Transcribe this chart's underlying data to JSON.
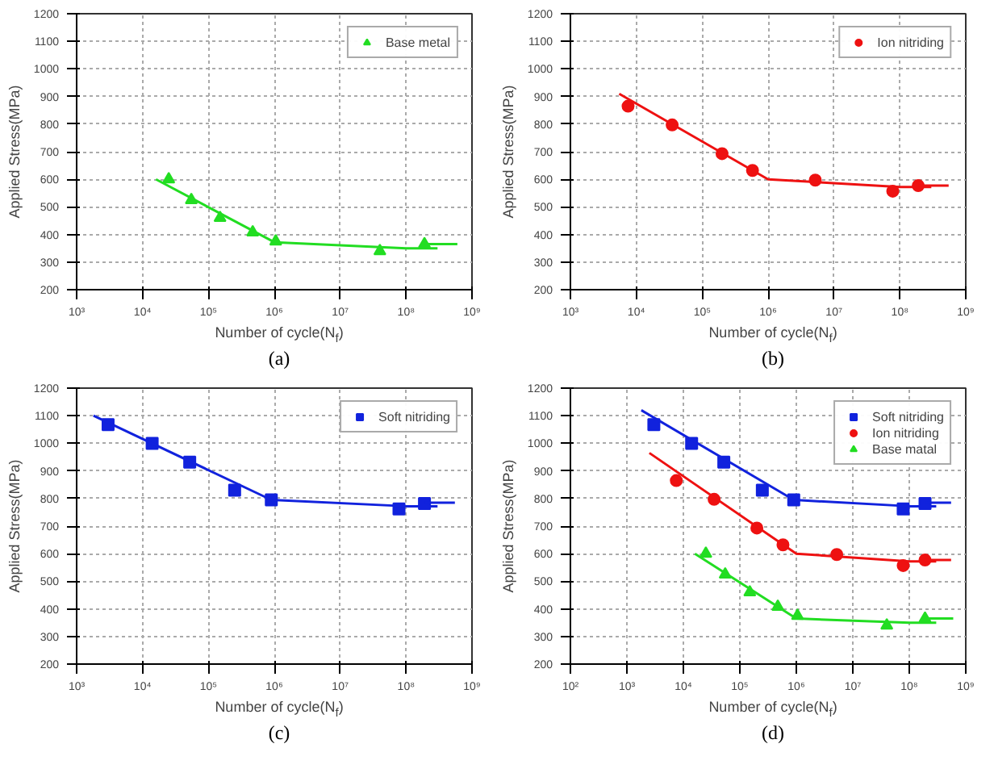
{
  "chart_data": [
    {
      "type": "scatter",
      "xlabel": "Number of cycle(N$_{f}$)",
      "ylabel": "Applied Stress(MPa)",
      "annotations": [
        "(a)"
      ],
      "log": "x",
      "grid": true,
      "legend": "top right",
      "xlim": [
        1000,
        1000000000
      ],
      "xticks": [
        {
          "value": 1000,
          "label": "10³"
        },
        {
          "value": 10000,
          "label": "10⁴"
        },
        {
          "value": 100000,
          "label": "10⁵"
        },
        {
          "value": 1000000,
          "label": "10⁶"
        },
        {
          "value": 10000000,
          "label": "10⁷"
        },
        {
          "value": 100000000,
          "label": "10⁸"
        },
        {
          "value": 1000000000,
          "label": "10⁹"
        }
      ],
      "ylim": [
        200,
        1200
      ],
      "yticks": [
        200,
        300,
        400,
        500,
        600,
        700,
        800,
        900,
        1000,
        1100,
        1200
      ],
      "series": [
        {
          "name": "Base metal",
          "color": "#22dd22",
          "marker": "triangle",
          "x": [
            25000,
            55000,
            150000,
            470000,
            1050000,
            40000000,
            190000000
          ],
          "values": [
            600,
            525,
            460,
            408,
            375,
            340,
            365
          ]
        },
        {
          "type": "line",
          "color": "#22dd22",
          "x": [
            16000,
            1000000,
            100000000,
            300000000
          ],
          "values": [
            600,
            372,
            350,
            350
          ]
        },
        {
          "type": "line",
          "color": "#22dd22",
          "x": [
            190000000,
            600000000
          ],
          "values": [
            365,
            365
          ]
        }
      ]
    },
    {
      "type": "scatter",
      "xlabel": "Number of cycle(N$_{f}$)",
      "ylabel": "Applied Stress(MPa)",
      "annotations": [
        "(b)"
      ],
      "log": "x",
      "grid": true,
      "legend": "top right",
      "xlim": [
        1000,
        1000000000
      ],
      "xticks": [
        {
          "value": 1000,
          "label": "10³"
        },
        {
          "value": 10000,
          "label": "10⁴"
        },
        {
          "value": 100000,
          "label": "10⁵"
        },
        {
          "value": 1000000,
          "label": "10⁶"
        },
        {
          "value": 10000000,
          "label": "10⁷"
        },
        {
          "value": 100000000,
          "label": "10⁸"
        },
        {
          "value": 1000000000,
          "label": "10⁹"
        }
      ],
      "ylim": [
        200,
        1200
      ],
      "yticks": [
        200,
        300,
        400,
        500,
        600,
        700,
        800,
        900,
        1000,
        1100,
        1200
      ],
      "series": [
        {
          "name": "Ion nitriding",
          "color": "#ee1111",
          "marker": "circle",
          "x": [
            7500,
            35000,
            200000,
            580000,
            5200000,
            78000000,
            190000000
          ],
          "values": [
            865,
            797,
            693,
            632,
            597,
            557,
            577
          ]
        },
        {
          "type": "line",
          "color": "#ee1111",
          "x": [
            5500,
            1000000,
            100000000,
            300000000
          ],
          "values": [
            910,
            600,
            572,
            572
          ]
        },
        {
          "type": "line",
          "color": "#ee1111",
          "x": [
            190000000,
            550000000
          ],
          "values": [
            577,
            577
          ]
        }
      ]
    },
    {
      "type": "scatter",
      "xlabel": "Number of cycle(N$_{f}$)",
      "ylabel": "Applied Stress(MPa)",
      "annotations": [
        "(c)"
      ],
      "log": "x",
      "grid": true,
      "legend": "top right",
      "xlim": [
        1000,
        1000000000
      ],
      "xticks": [
        {
          "value": 1000,
          "label": "10³"
        },
        {
          "value": 10000,
          "label": "10⁴"
        },
        {
          "value": 100000,
          "label": "10⁵"
        },
        {
          "value": 1000000,
          "label": "10⁶"
        },
        {
          "value": 10000000,
          "label": "10⁷"
        },
        {
          "value": 100000000,
          "label": "10⁸"
        },
        {
          "value": 1000000000,
          "label": "10⁹"
        }
      ],
      "ylim": [
        200,
        1200
      ],
      "yticks": [
        200,
        300,
        400,
        500,
        600,
        700,
        800,
        900,
        1000,
        1100,
        1200
      ],
      "series": [
        {
          "name": "Soft nitriding",
          "color": "#1122dd",
          "marker": "square",
          "x": [
            3000,
            14000,
            52000,
            250000,
            900000,
            78000000,
            190000000
          ],
          "values": [
            1068,
            1000,
            932,
            830,
            795,
            762,
            782
          ]
        },
        {
          "type": "line",
          "color": "#1122dd",
          "x": [
            1800,
            900000,
            100000000,
            300000000
          ],
          "values": [
            1100,
            795,
            772,
            772
          ]
        },
        {
          "type": "line",
          "color": "#1122dd",
          "x": [
            190000000,
            550000000
          ],
          "values": [
            785,
            785
          ]
        }
      ]
    },
    {
      "type": "scatter",
      "xlabel": "Number of cycle(N$_{f}$)",
      "ylabel": "Applied Stress(MPa)",
      "annotations": [
        "(d)"
      ],
      "log": "x",
      "grid": true,
      "legend": "top right",
      "xlim": [
        100,
        1000000000
      ],
      "xticks": [
        {
          "value": 100,
          "label": "10²"
        },
        {
          "value": 1000,
          "label": "10³"
        },
        {
          "value": 10000,
          "label": "10⁴"
        },
        {
          "value": 100000,
          "label": "10⁵"
        },
        {
          "value": 1000000,
          "label": "10⁶"
        },
        {
          "value": 10000000,
          "label": "10⁷"
        },
        {
          "value": 100000000,
          "label": "10⁸"
        },
        {
          "value": 1000000000,
          "label": "10⁹"
        }
      ],
      "ylim": [
        200,
        1200
      ],
      "yticks": [
        200,
        300,
        400,
        500,
        600,
        700,
        800,
        900,
        1000,
        1100,
        1200
      ],
      "series": [
        {
          "name": "Soft nitriding",
          "color": "#1122dd",
          "marker": "square",
          "x": [
            3000,
            14000,
            52000,
            250000,
            900000,
            78000000,
            190000000
          ],
          "values": [
            1068,
            1000,
            932,
            830,
            795,
            762,
            782
          ]
        },
        {
          "name": "Ion nitriding",
          "color": "#ee1111",
          "marker": "circle",
          "x": [
            7500,
            35000,
            200000,
            580000,
            5200000,
            78000000,
            190000000
          ],
          "values": [
            865,
            797,
            693,
            632,
            597,
            557,
            577
          ]
        },
        {
          "name": "Base matal",
          "color": "#22dd22",
          "marker": "triangle",
          "x": [
            25000,
            55000,
            150000,
            470000,
            1050000,
            40000000,
            190000000
          ],
          "values": [
            600,
            525,
            460,
            408,
            375,
            340,
            365
          ]
        },
        {
          "type": "line",
          "color": "#1122dd",
          "x": [
            1800,
            900000,
            100000000,
            300000000
          ],
          "values": [
            1120,
            795,
            772,
            772
          ]
        },
        {
          "type": "line",
          "color": "#1122dd",
          "x": [
            190000000,
            550000000
          ],
          "values": [
            785,
            785
          ]
        },
        {
          "type": "line",
          "color": "#ee1111",
          "x": [
            2500,
            1000000,
            100000000,
            300000000
          ],
          "values": [
            965,
            600,
            572,
            572
          ]
        },
        {
          "type": "line",
          "color": "#ee1111",
          "x": [
            190000000,
            550000000
          ],
          "values": [
            577,
            577
          ]
        },
        {
          "type": "line",
          "color": "#22dd22",
          "x": [
            16000,
            1000000,
            100000000,
            300000000
          ],
          "values": [
            600,
            365,
            350,
            350
          ]
        },
        {
          "type": "line",
          "color": "#22dd22",
          "x": [
            190000000,
            600000000
          ],
          "values": [
            365,
            365
          ]
        }
      ]
    }
  ]
}
